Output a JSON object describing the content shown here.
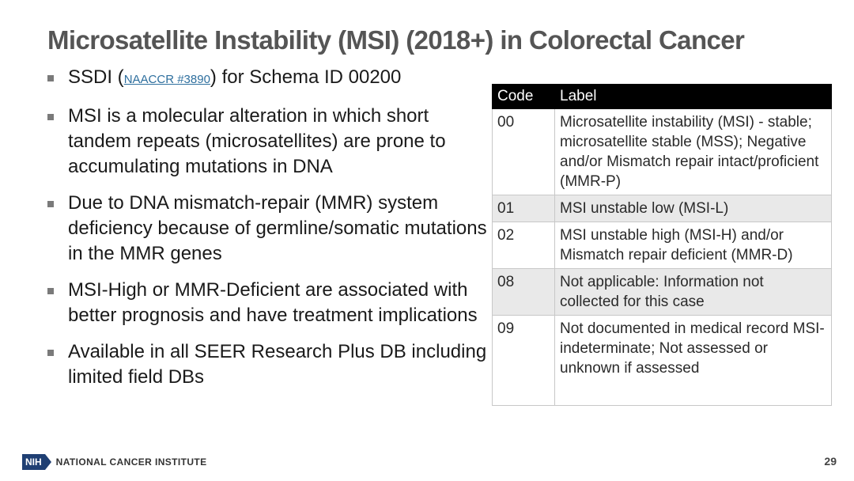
{
  "slide": {
    "title": "Microsatellite Instability (MSI) (2018+) in Colorectal Cancer",
    "page_number": "29"
  },
  "bullets": [
    {
      "pre": "SSDI (",
      "link": "NAACCR #3890",
      "post": ") for Schema ID 00200"
    },
    {
      "text": "MSI is a molecular alteration in which short tandem repeats (microsatellites) are prone to accumulating mutations in DNA"
    },
    {
      "text": "Due to DNA mismatch-repair (MMR) system deficiency because of germline/somatic mutations in the MMR genes"
    },
    {
      "text": "MSI-High or MMR-Deficient are associated with better prognosis and have treatment implications"
    },
    {
      "text": "Available in all SEER Research Plus DB including limited field DBs"
    }
  ],
  "table": {
    "headers": {
      "code": "Code",
      "label": "Label"
    },
    "rows": [
      {
        "code": "00",
        "label": "Microsatellite instability (MSI) - stable; microsatellite stable (MSS); Negative and/or Mismatch repair intact/proficient (MMR-P)"
      },
      {
        "code": "01",
        "label": "MSI unstable low (MSI-L)"
      },
      {
        "code": "02",
        "label": "MSI unstable high (MSI-H) and/or Mismatch repair deficient (MMR-D)"
      },
      {
        "code": "08",
        "label": "Not applicable: Information not collected for this case"
      },
      {
        "code": "09",
        "label": "Not documented in medical record MSI-indeterminate; Not assessed or unknown if assessed"
      }
    ]
  },
  "footer": {
    "logo_text": "NIH",
    "org_name": "NATIONAL CANCER INSTITUTE"
  },
  "colors": {
    "title": "#555555",
    "table_header_bg": "#000000",
    "shaded_row_bg": "#e9e9e9",
    "nih_blue": "#1f3f73",
    "link": "#2e6f9e"
  },
  "icons": {
    "bullet": "square-bullet-icon"
  }
}
